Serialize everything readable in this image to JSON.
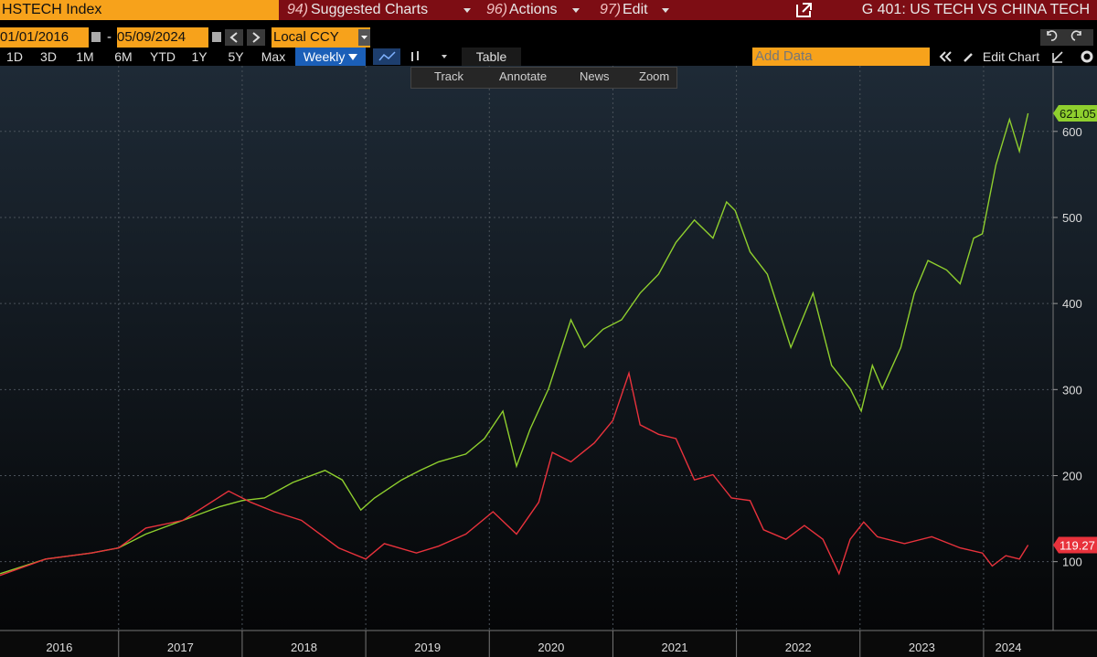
{
  "header": {
    "ticker": "HSTECH Index",
    "menu": [
      {
        "num": "94)",
        "label": "Suggested Charts"
      },
      {
        "num": "96)",
        "label": "Actions"
      },
      {
        "num": "97)",
        "label": "Edit"
      }
    ],
    "chart_name": "G 401: US TECH VS CHINA TECH"
  },
  "controls": {
    "start_date": "01/01/2016",
    "date_sep": "-",
    "end_date": "05/09/2024",
    "currency": "Local CCY",
    "periods": [
      "1D",
      "3D",
      "1M",
      "6M",
      "YTD",
      "1Y",
      "5Y",
      "Max"
    ],
    "frequency": "Weekly",
    "table": "Table",
    "add_data": "Add Data",
    "edit_chart": "Edit Chart",
    "tools": [
      "Track",
      "Annotate",
      "News",
      "Zoom"
    ]
  },
  "chart_data": {
    "type": "line",
    "xlim": [
      2016.04,
      2024.4
    ],
    "xticks": [
      {
        "value": 2016,
        "label": "2016"
      },
      {
        "value": 2017,
        "label": "2017"
      },
      {
        "value": 2018,
        "label": "2018"
      },
      {
        "value": 2019,
        "label": "2019"
      },
      {
        "value": 2020,
        "label": "2020"
      },
      {
        "value": 2021,
        "label": "2021"
      },
      {
        "value": 2022,
        "label": "2022"
      },
      {
        "value": 2023,
        "label": "2023"
      },
      {
        "value": 2024,
        "label": "2024"
      }
    ],
    "ylim": [
      20,
      655
    ],
    "yticks": [
      100,
      200,
      300,
      400,
      500,
      600
    ],
    "grid": true,
    "series": [
      {
        "color": "#8fcf2e",
        "label_text_color": "#10200a",
        "x": [
          2016.04,
          2016.41,
          2016.78,
          2017.0,
          2017.22,
          2017.52,
          2017.82,
          2018.0,
          2018.18,
          2018.41,
          2018.67,
          2018.81,
          2018.96,
          2019.07,
          2019.29,
          2019.44,
          2019.59,
          2019.81,
          2019.96,
          2020.11,
          2020.22,
          2020.33,
          2020.48,
          2020.66,
          2020.77,
          2020.92,
          2021.07,
          2021.22,
          2021.37,
          2021.51,
          2021.66,
          2021.81,
          2021.92,
          2021.99,
          2022.11,
          2022.25,
          2022.44,
          2022.62,
          2022.77,
          2022.92,
          2023.01,
          2023.1,
          2023.18,
          2023.33,
          2023.44,
          2023.55,
          2023.7,
          2023.81,
          2023.92,
          2023.99,
          2024.1,
          2024.21,
          2024.29,
          2024.36
        ],
        "values": [
          86,
          103,
          110,
          116,
          132,
          148,
          164,
          171,
          174,
          192,
          206,
          195,
          160,
          174,
          195,
          206,
          216,
          225,
          243,
          275,
          211,
          254,
          301,
          381,
          349,
          370,
          381,
          412,
          434,
          471,
          497,
          476,
          518,
          508,
          460,
          434,
          349,
          412,
          328,
          301,
          275,
          328,
          301,
          349,
          412,
          450,
          439,
          423,
          476,
          481,
          561,
          614,
          577,
          621.05
        ]
      },
      {
        "color": "#e8323c",
        "label_text_color": "#ffffff",
        "x": [
          2016.04,
          2016.41,
          2016.78,
          2017.0,
          2017.22,
          2017.52,
          2017.89,
          2018.07,
          2018.26,
          2018.48,
          2018.78,
          2019.0,
          2019.15,
          2019.41,
          2019.59,
          2019.81,
          2020.03,
          2020.22,
          2020.4,
          2020.51,
          2020.66,
          2020.85,
          2021.0,
          2021.13,
          2021.22,
          2021.37,
          2021.51,
          2021.66,
          2021.81,
          2021.96,
          2022.11,
          2022.22,
          2022.4,
          2022.55,
          2022.7,
          2022.83,
          2022.92,
          2023.03,
          2023.14,
          2023.36,
          2023.58,
          2023.81,
          2023.99,
          2024.07,
          2024.18,
          2024.29,
          2024.36
        ],
        "values": [
          84,
          103,
          110,
          116,
          139,
          148,
          182,
          169,
          158,
          148,
          116,
          103,
          121,
          110,
          118,
          132,
          158,
          132,
          169,
          227,
          216,
          238,
          264,
          319,
          259,
          248,
          243,
          195,
          201,
          174,
          171,
          137,
          126,
          142,
          126,
          86,
          126,
          146,
          129,
          121,
          129,
          116,
          110,
          95,
          107,
          103,
          119.27
        ]
      }
    ]
  }
}
